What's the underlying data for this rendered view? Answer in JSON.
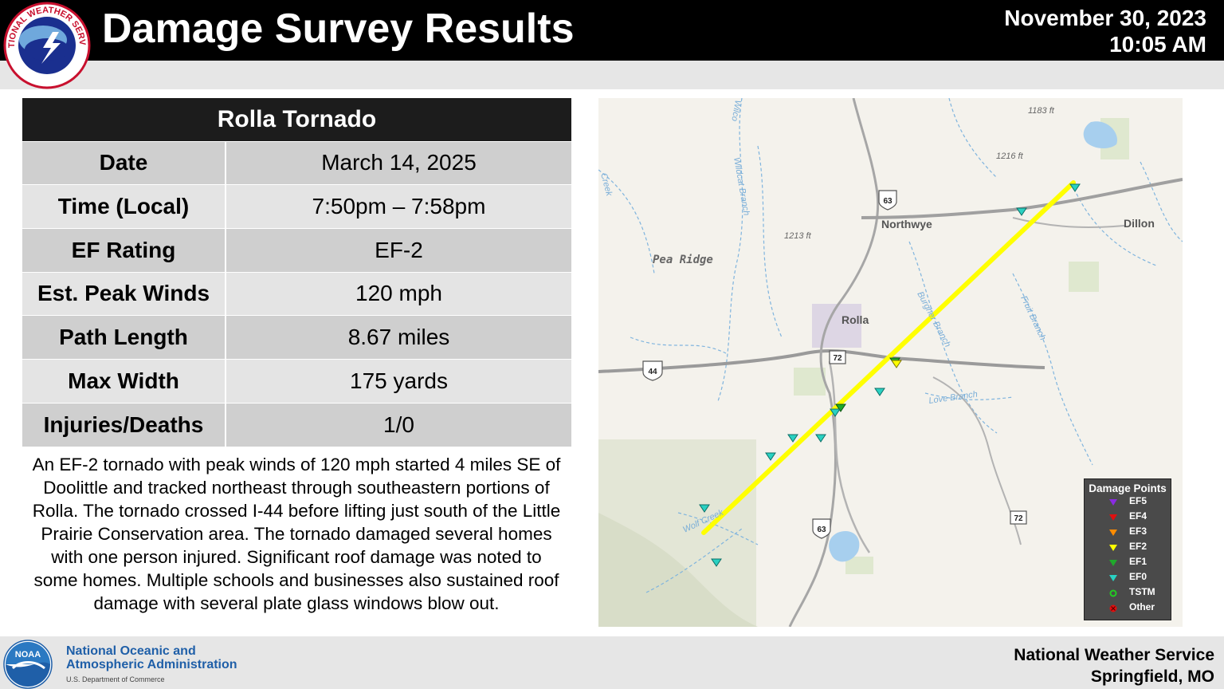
{
  "header": {
    "title": "Damage Survey Results",
    "date": "November 30, 2023",
    "time": "10:05 AM",
    "logo_text": "NATIONAL WEATHER SERVICE"
  },
  "table": {
    "title": "Rolla Tornado",
    "rows": [
      {
        "key": "Date",
        "value": "March 14, 2025"
      },
      {
        "key": "Time (Local)",
        "value": "7:50pm – 7:58pm"
      },
      {
        "key": "EF Rating",
        "value": "EF-2"
      },
      {
        "key": "Est. Peak Winds",
        "value": "120 mph"
      },
      {
        "key": "Path Length",
        "value": "8.67 miles"
      },
      {
        "key": "Max Width",
        "value": "175 yards"
      },
      {
        "key": "Injuries/Deaths",
        "value": "1/0"
      }
    ]
  },
  "summary": "An EF-2 tornado with peak winds of 120 mph started 4 miles SE of Doolittle and tracked northeast through southeastern portions of Rolla. The tornado crossed I-44 before lifting just south of the Little Prairie Conservation area. The tornado damaged several homes with one person injured. Significant roof damage was noted to some homes. Multiple schools and businesses also sustained roof damage with several plate glass windows blow out.",
  "map": {
    "place_labels": {
      "rolla": "Rolla",
      "northwye": "Northwye",
      "dillon": "Dillon",
      "pea_ridge": "Pea Ridge"
    },
    "elevation_labels": {
      "e1183": "1183 ft",
      "e1216": "1216 ft",
      "e1213": "1213 ft"
    },
    "stream_labels": {
      "wildcat_branch": "Wildcat Branch",
      "burgher_branch": "Burgher Branch",
      "love_branch": "Love Branch",
      "fruit_branch": "Fruit Branch",
      "wolf_creek": "Wolf Creek",
      "creek": "Creek",
      "wilcox": "Wilco"
    },
    "route_shields": {
      "us63_north": "63",
      "us63_south": "63",
      "i44": "44",
      "hwy72_center": "72",
      "hwy72_south": "72"
    },
    "colors": {
      "track": "#ffff00",
      "ef0": "#2ad1c2",
      "ef1": "#1faa2b",
      "ef2": "#ffff00",
      "ef3": "#ff8c00",
      "ef4": "#e01010",
      "ef5": "#8a2be2"
    },
    "legend": {
      "title": "Damage Points",
      "items": [
        {
          "label": "EF5",
          "color": "#8a2be2",
          "shape": "triangle"
        },
        {
          "label": "EF4",
          "color": "#e01010",
          "shape": "triangle"
        },
        {
          "label": "EF3",
          "color": "#ff8c00",
          "shape": "triangle"
        },
        {
          "label": "EF2",
          "color": "#ffff00",
          "shape": "triangle"
        },
        {
          "label": "EF1",
          "color": "#1faa2b",
          "shape": "triangle"
        },
        {
          "label": "EF0",
          "color": "#2ad1c2",
          "shape": "triangle"
        },
        {
          "label": "TSTM",
          "color": "#22cc22",
          "shape": "circle"
        },
        {
          "label": "Other",
          "color": "#e01010",
          "shape": "circle-x"
        }
      ]
    }
  },
  "footer": {
    "noaa_line1": "National Oceanic and",
    "noaa_line2": "Atmospheric Administration",
    "noaa_sub": "U.S. Department of Commerce",
    "noaa_logo_text": "NOAA",
    "office_line1": "National Weather Service",
    "office_line2": "Springfield, MO"
  }
}
